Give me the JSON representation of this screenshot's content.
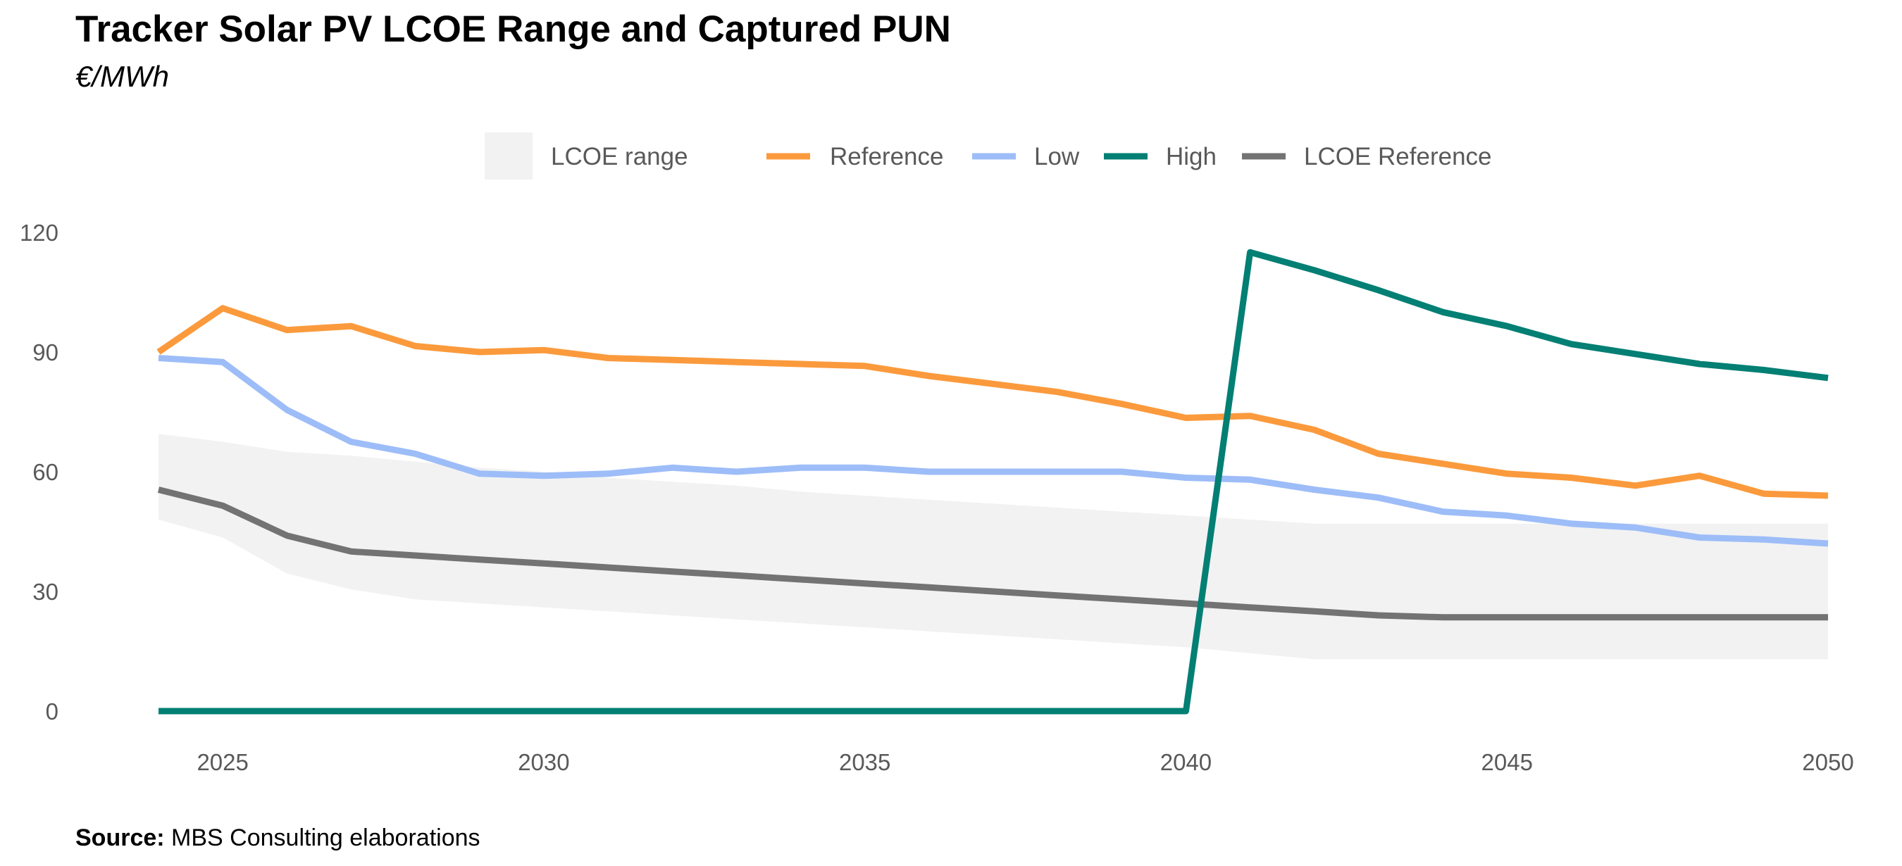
{
  "title": "Tracker Solar PV LCOE Range and Captured PUN",
  "subtitle": "€/MWh",
  "source": {
    "label": "Source:",
    "text": "MBS Consulting elaborations"
  },
  "chart_data": {
    "type": "line",
    "title": "Tracker Solar PV LCOE Range and Captured PUN",
    "subtitle": "€/MWh",
    "xlabel": "",
    "ylabel": "",
    "x": [
      2024,
      2025,
      2026,
      2027,
      2028,
      2029,
      2030,
      2031,
      2032,
      2033,
      2034,
      2035,
      2036,
      2037,
      2038,
      2039,
      2040,
      2041,
      2042,
      2043,
      2044,
      2045,
      2046,
      2047,
      2048,
      2049,
      2050
    ],
    "xlim": [
      2024,
      2050
    ],
    "x_ticks": [
      2025,
      2030,
      2035,
      2040,
      2045,
      2050
    ],
    "ylim": [
      0,
      120
    ],
    "y_ticks": [
      0,
      30,
      60,
      90,
      120
    ],
    "grid": false,
    "legend_position": "top-center",
    "range": {
      "name": "LCOE range",
      "color": "#f2f2f2",
      "lower": [
        48,
        43.5,
        34.5,
        30.5,
        28,
        27,
        26,
        25,
        24,
        23,
        22,
        21,
        20,
        19,
        18,
        17,
        16,
        14.5,
        13,
        13,
        13,
        13,
        13,
        13,
        13,
        13,
        13
      ],
      "upper": [
        69.5,
        67.5,
        65,
        64,
        62.5,
        61,
        60,
        58.5,
        57.5,
        56.5,
        55,
        54,
        53,
        52,
        51,
        50,
        49,
        48,
        47,
        47,
        47,
        47,
        47,
        47,
        47,
        47,
        47
      ]
    },
    "series": [
      {
        "name": "Reference",
        "color": "#fb9a3c",
        "values": [
          90,
          101,
          95.5,
          96.5,
          91.5,
          90,
          90.5,
          88.5,
          88,
          87.5,
          87,
          86.5,
          84,
          82,
          80,
          77,
          73.5,
          74,
          70.5,
          64.5,
          62,
          59.5,
          58.5,
          56.5,
          59,
          54.5,
          54
        ]
      },
      {
        "name": "Low",
        "color": "#9dbdf8",
        "values": [
          88.5,
          87.5,
          75.5,
          67.5,
          64.5,
          59.5,
          59,
          59.5,
          61,
          60,
          61,
          61,
          60,
          60,
          60,
          60,
          58.5,
          58,
          55.5,
          53.5,
          50,
          49,
          47,
          46,
          43.5,
          43,
          42
        ]
      },
      {
        "name": "High",
        "color": "#037f74",
        "values": [
          0,
          0,
          0,
          0,
          0,
          0,
          0,
          0,
          0,
          0,
          0,
          0,
          0,
          0,
          0,
          0,
          0,
          115,
          110.5,
          105.5,
          100,
          96.5,
          92,
          89.5,
          87,
          85.5,
          83.5
        ]
      },
      {
        "name": "LCOE Reference",
        "color": "#737373",
        "values": [
          55.5,
          51.5,
          44,
          40,
          39,
          38,
          37,
          36,
          35,
          34,
          33,
          32,
          31,
          30,
          29,
          28,
          27,
          26,
          25,
          24,
          23.5,
          23.5,
          23.5,
          23.5,
          23.5,
          23.5,
          23.5
        ]
      }
    ]
  }
}
